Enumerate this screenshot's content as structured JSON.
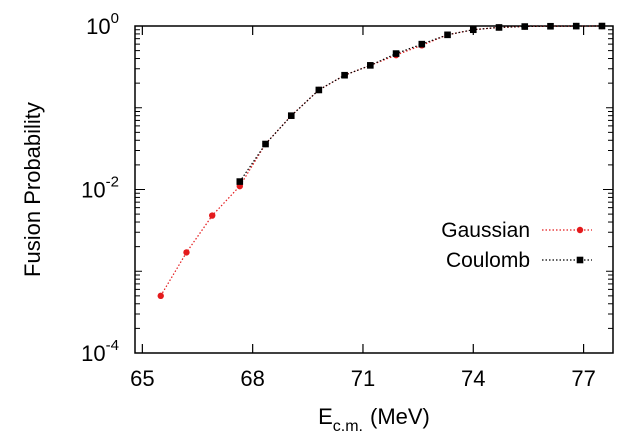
{
  "chart_data": {
    "type": "line",
    "xlabel": "E",
    "xlabel_subscript": "c.m.",
    "xlabel_unit": "(MeV)",
    "ylabel": "Fusion Probability",
    "xlim": [
      64.8,
      77.8
    ],
    "ylim": [
      0.0001,
      1
    ],
    "y_scale": "log",
    "x_ticks": [
      65,
      68,
      71,
      74,
      77
    ],
    "x_tick_labels": [
      "65",
      "68",
      "71",
      "74",
      "77"
    ],
    "y_ticks": [
      {
        "value": 1,
        "base": "10",
        "exp": "0"
      },
      {
        "value": 0.01,
        "base": "10",
        "exp": "-2"
      },
      {
        "value": 0.0001,
        "base": "10",
        "exp": "-4"
      }
    ],
    "legend_position": "center-right",
    "series": [
      {
        "name": "Gaussian",
        "color": "#e41a1c",
        "marker": "circle",
        "line_style": "dotted",
        "x": [
          65.5,
          66.2,
          66.9,
          67.65,
          68.35,
          69.05,
          69.8,
          70.5,
          71.2,
          71.9,
          72.6,
          73.3,
          74.0,
          74.7,
          75.4,
          76.1,
          76.8,
          77.5
        ],
        "y": [
          0.0005,
          0.0017,
          0.0048,
          0.011,
          0.036,
          0.08,
          0.165,
          0.25,
          0.33,
          0.44,
          0.58,
          0.78,
          0.9,
          0.96,
          0.985,
          0.993,
          0.997,
          0.999
        ]
      },
      {
        "name": "Coulomb",
        "color": "#000000",
        "marker": "square",
        "line_style": "dotted",
        "x": [
          67.65,
          68.35,
          69.05,
          69.8,
          70.5,
          71.2,
          71.9,
          72.6,
          73.3,
          74.0,
          74.7,
          75.4,
          76.1,
          76.8,
          77.5
        ],
        "y": [
          0.0125,
          0.036,
          0.08,
          0.165,
          0.25,
          0.33,
          0.46,
          0.6,
          0.78,
          0.9,
          0.96,
          0.985,
          0.993,
          0.997,
          0.999
        ]
      }
    ]
  },
  "colors": {
    "axis": "#000000",
    "background": "#ffffff"
  }
}
